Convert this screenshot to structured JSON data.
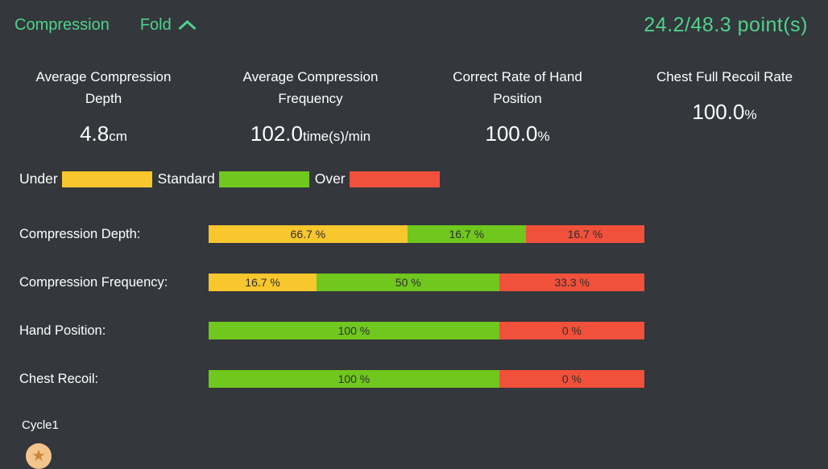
{
  "colors": {
    "background": "#34373c",
    "accent_green": "#4ed38b",
    "under": "#f8c62d",
    "standard": "#70c71d",
    "over": "#f1503a",
    "bar_text": "#2f2f2f",
    "star_circle": "#f3c48c",
    "star": "#c9883f"
  },
  "icons": {
    "star": "★",
    "chevron_up": "chevron-up"
  },
  "header": {
    "section_title": "Compression",
    "fold_label": "Fold",
    "score_current": "24.2",
    "score_separator": "/",
    "score_max": "48.3",
    "score_unit": " point(s)"
  },
  "metrics": [
    {
      "title": "Average Compression Depth",
      "value": "4.8",
      "unit": "cm"
    },
    {
      "title": "Average Compression Frequency",
      "value": "102.0",
      "unit": "time(s)/min"
    },
    {
      "title": "Correct Rate of Hand Position",
      "value": "100.0",
      "unit": "%"
    },
    {
      "title": "Chest Full Recoil Rate",
      "value": "100.0",
      "unit": "%"
    }
  ],
  "legend": [
    {
      "label": "Under",
      "color_key": "under"
    },
    {
      "label": "Standard",
      "color_key": "standard"
    },
    {
      "label": "Over",
      "color_key": "over"
    }
  ],
  "chart_data": {
    "type": "bar",
    "orientation": "horizontal-stacked",
    "legend": [
      "Under",
      "Standard",
      "Over"
    ],
    "legend_position": "top-left",
    "value_unit": "%",
    "rows": [
      {
        "label": "Compression Depth:",
        "segments": [
          {
            "category": "Under",
            "value": 66.7,
            "value_label": "66.7 %",
            "color_key": "under",
            "display_width_pct": 45.6
          },
          {
            "category": "Standard",
            "value": 16.7,
            "value_label": "16.7 %",
            "color_key": "standard",
            "display_width_pct": 27.2
          },
          {
            "category": "Over",
            "value": 16.7,
            "value_label": "16.7 %",
            "color_key": "over",
            "display_width_pct": 27.2
          }
        ]
      },
      {
        "label": "Compression Frequency:",
        "segments": [
          {
            "category": "Under",
            "value": 16.7,
            "value_label": "16.7 %",
            "color_key": "under",
            "display_width_pct": 24.8
          },
          {
            "category": "Standard",
            "value": 50,
            "value_label": "50 %",
            "color_key": "standard",
            "display_width_pct": 42.0
          },
          {
            "category": "Over",
            "value": 33.3,
            "value_label": "33.3 %",
            "color_key": "over",
            "display_width_pct": 33.2
          }
        ]
      },
      {
        "label": "Hand Position:",
        "segments": [
          {
            "category": "Standard",
            "value": 100,
            "value_label": "100 %",
            "color_key": "standard",
            "display_width_pct": 66.7
          },
          {
            "category": "Over",
            "value": 0,
            "value_label": "0 %",
            "color_key": "over",
            "display_width_pct": 33.3
          }
        ]
      },
      {
        "label": "Chest Recoil:",
        "segments": [
          {
            "category": "Standard",
            "value": 100,
            "value_label": "100 %",
            "color_key": "standard",
            "display_width_pct": 66.7
          },
          {
            "category": "Over",
            "value": 0,
            "value_label": "0 %",
            "color_key": "over",
            "display_width_pct": 33.3
          }
        ]
      }
    ]
  },
  "footer": {
    "cycle_label": "Cycle1"
  }
}
